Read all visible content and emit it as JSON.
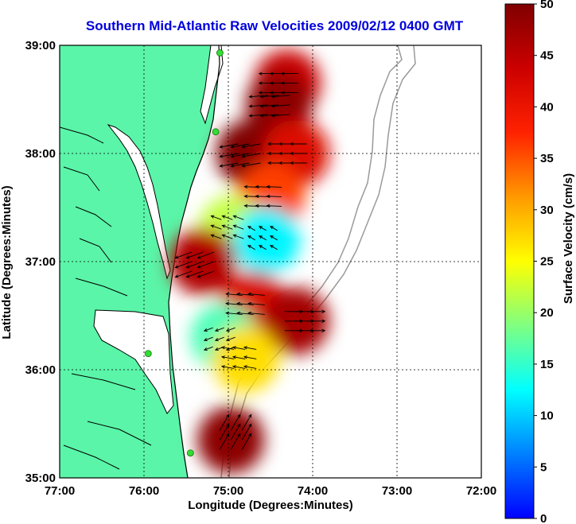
{
  "chart_data": {
    "type": "heatmap",
    "title": "Southern Mid-Atlantic Raw Velocities 2009/02/12 0400 GMT",
    "xlabel": "Longitude (Degrees:Minutes)",
    "ylabel": "Latitude (Degrees:Minutes)",
    "x_ticks": [
      "77:00",
      "76:00",
      "75:00",
      "74:00",
      "73:00",
      "72:00"
    ],
    "y_ticks": [
      "39:00",
      "38:00",
      "37:00",
      "36:00",
      "35:00"
    ],
    "xlim": [
      -77,
      -72
    ],
    "ylim": [
      35,
      39
    ],
    "grid": true,
    "colorbar": {
      "label": "Surface Velocity (cm/s)",
      "min": 0,
      "max": 50,
      "ticks": [
        "50",
        "45",
        "40",
        "35",
        "30",
        "25",
        "20",
        "15",
        "10",
        "5",
        "0"
      ],
      "colormap": "jet"
    },
    "colors": {
      "land": "#5af5a8",
      "title": "#0000dd",
      "vector": "#000000",
      "bathymetry": "#9a9a9a",
      "station": "#33dd33"
    },
    "stations": [
      {
        "lon": -75.1,
        "lat": 38.93
      },
      {
        "lon": -75.15,
        "lat": 38.2
      },
      {
        "lon": -75.95,
        "lat": 36.15
      },
      {
        "lon": -75.45,
        "lat": 35.23
      }
    ],
    "velocity_field": [
      {
        "lon": -74.3,
        "lat": 38.65,
        "speed": 44,
        "dir": 180
      },
      {
        "lon": -74.4,
        "lat": 38.45,
        "speed": 49,
        "dir": 185
      },
      {
        "lon": -74.75,
        "lat": 38.0,
        "speed": 50,
        "dir": 190
      },
      {
        "lon": -74.2,
        "lat": 38.0,
        "speed": 42,
        "dir": 180
      },
      {
        "lon": -74.5,
        "lat": 37.6,
        "speed": 36,
        "dir": 178
      },
      {
        "lon": -74.95,
        "lat": 37.3,
        "speed": 22,
        "dir": 160
      },
      {
        "lon": -74.55,
        "lat": 37.2,
        "speed": 12,
        "dir": 150
      },
      {
        "lon": -75.3,
        "lat": 37.0,
        "speed": 46,
        "dir": 200
      },
      {
        "lon": -74.7,
        "lat": 36.6,
        "speed": 42,
        "dir": 175
      },
      {
        "lon": -74.2,
        "lat": 36.45,
        "speed": 47,
        "dir": 0
      },
      {
        "lon": -75.05,
        "lat": 36.3,
        "speed": 16,
        "dir": 200
      },
      {
        "lon": -74.8,
        "lat": 36.1,
        "speed": 27,
        "dir": 170
      },
      {
        "lon": -74.97,
        "lat": 35.35,
        "speed": 49,
        "dir": 60
      }
    ]
  }
}
